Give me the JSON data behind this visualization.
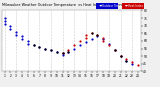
{
  "bg_color": "#f0f0f0",
  "plot_bg": "#ffffff",
  "blue_color": "#0000cc",
  "red_color": "#cc0000",
  "black_color": "#000000",
  "grid_color": "#cccccc",
  "temp_x": [
    1,
    1,
    1,
    2,
    2,
    3,
    3,
    4,
    4,
    5,
    5,
    6,
    7,
    8,
    9,
    10,
    11,
    11,
    12,
    13,
    14,
    15,
    16,
    17,
    18,
    19,
    20,
    21,
    22,
    23
  ],
  "temp_y": [
    75,
    73,
    71,
    70,
    68,
    66,
    64,
    63,
    61,
    60,
    58,
    57,
    56,
    55,
    54,
    53,
    52,
    51,
    53,
    55,
    57,
    59,
    61,
    63,
    61,
    58,
    54,
    50,
    47,
    45
  ],
  "heat_x": [
    11,
    12,
    13,
    14,
    15,
    15,
    16,
    17,
    18,
    18,
    19,
    20,
    21,
    22,
    23,
    24
  ],
  "heat_y": [
    52,
    54,
    57,
    60,
    62,
    64,
    65,
    64,
    62,
    60,
    57,
    54,
    50,
    48,
    46,
    44
  ],
  "black_x": [
    6,
    7,
    8,
    9,
    10,
    11,
    12,
    16,
    17,
    20,
    21,
    22
  ],
  "black_y": [
    57,
    56,
    55,
    54,
    53,
    52,
    53,
    65,
    64,
    54,
    50,
    47
  ],
  "ylim": [
    40,
    80
  ],
  "xlim": [
    0.5,
    24.5
  ],
  "yticks": [
    40,
    45,
    50,
    55,
    60,
    65,
    70,
    75,
    80
  ],
  "ytick_labels": [
    "40",
    "45",
    "50",
    "55",
    "60",
    "65",
    "70",
    "75",
    "80"
  ],
  "xticks": [
    1,
    2,
    3,
    4,
    5,
    6,
    7,
    8,
    9,
    10,
    11,
    12,
    13,
    14,
    15,
    16,
    17,
    18,
    19,
    20,
    21,
    22,
    23,
    24
  ],
  "xtick_labels": [
    "1",
    "2",
    "3",
    "4",
    "5",
    "6",
    "7",
    "8",
    "9",
    "10",
    "11",
    "12",
    "13",
    "14",
    "15",
    "16",
    "17",
    "18",
    "19",
    "20",
    "21",
    "22",
    "23",
    "24"
  ],
  "vgrid_x": [
    1,
    3,
    5,
    7,
    9,
    11,
    13,
    15,
    17,
    19,
    21,
    23
  ],
  "title_left": "Milwaukee Weather Outdoor Temperature",
  "title_right": "vs Heat Index\n(24 Hours)",
  "legend_blue_label": "Outdoor Temp",
  "legend_red_label": "Heat Index",
  "marker_size": 2.5
}
